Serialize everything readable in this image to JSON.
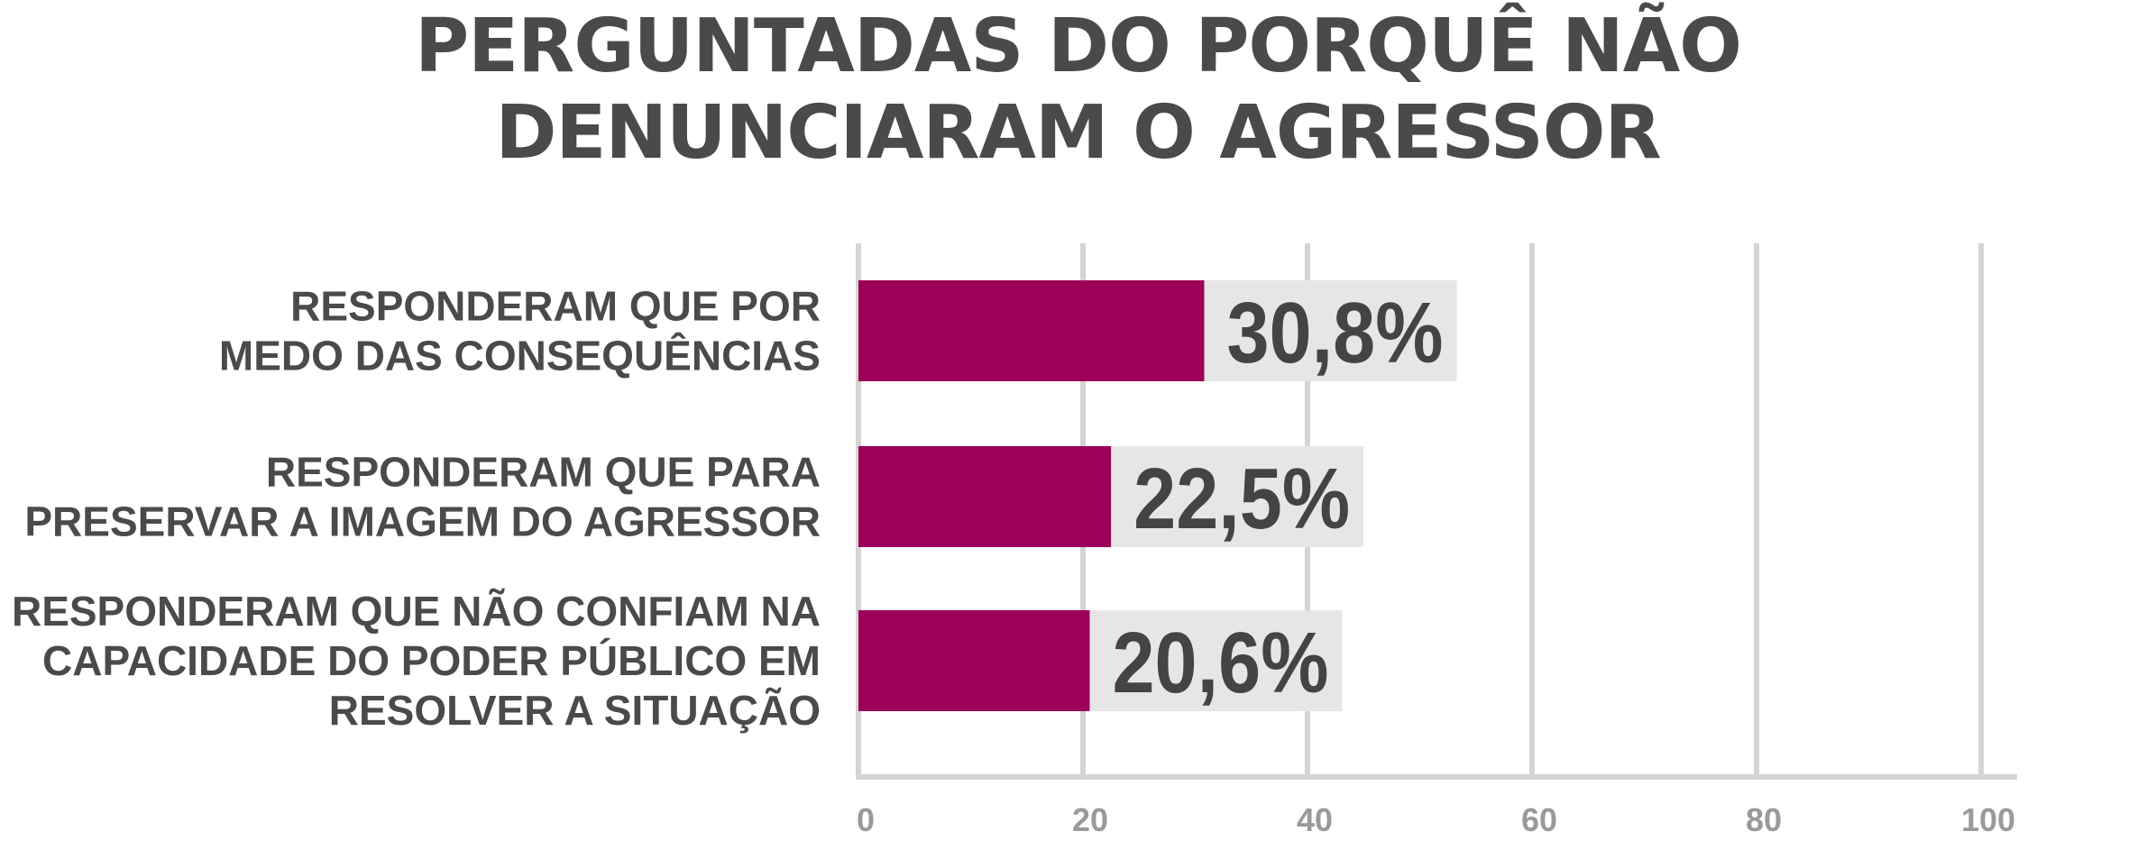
{
  "title_lines": [
    "PERGUNTADAS DO PORQUÊ NÃO",
    "DENUNCIARAM O AGRESSOR"
  ],
  "chart_data": {
    "type": "bar",
    "orientation": "horizontal",
    "categories": [
      [
        "RESPONDERAM QUE POR",
        "MEDO DAS CONSEQUÊNCIAS"
      ],
      [
        "RESPONDERAM QUE PARA",
        "PRESERVAR A IMAGEM DO AGRESSOR"
      ],
      [
        "RESPONDERAM QUE NÃO CONFIAM NA",
        "CAPACIDADE DO PODER PÚBLICO EM",
        "RESOLVER A SITUAÇÃO"
      ]
    ],
    "values": [
      30.8,
      22.5,
      20.6
    ],
    "value_labels": [
      "30,8%",
      "22,5%",
      "20,6%"
    ],
    "xlim": [
      0,
      100
    ],
    "xticks": [
      "0",
      "20",
      "40",
      "60",
      "80",
      "100"
    ],
    "grid": true,
    "colors": {
      "bar": "#9c0058",
      "label_bg": "#e6e6e6",
      "grid": "#d4d4d4",
      "text": "#4a4a4a",
      "tick": "#9a9a9a"
    }
  }
}
